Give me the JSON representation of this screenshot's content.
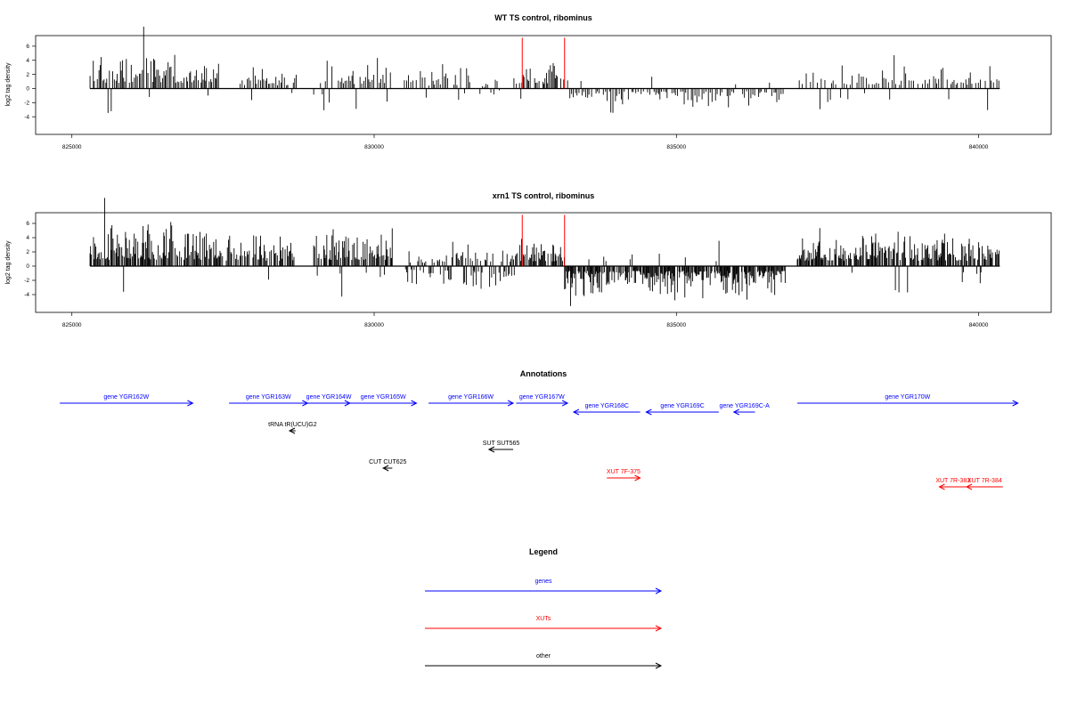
{
  "chart_data": [
    {
      "type": "bar",
      "title": "WT TS control, ribominus",
      "ylabel": "log2 tag density",
      "xlabel": "",
      "xlim": [
        824400,
        841200
      ],
      "ylim": [
        -6.5,
        7.5
      ],
      "xticks": [
        825000,
        830000,
        835000,
        840000
      ],
      "yticks": [
        -4,
        -2,
        0,
        2,
        4,
        6
      ],
      "xtick_labels": [
        "825000",
        "830000",
        "835000",
        "840000"
      ],
      "ytick_labels": [
        "-4",
        "-2",
        "0",
        "2",
        "4",
        "6"
      ],
      "markers": [
        832450,
        833150
      ],
      "marker_height": 7.2,
      "segments": [
        {
          "from": 825300,
          "to": 827450,
          "amp": 3.2,
          "neg": 0.03,
          "step": 22
        },
        {
          "from": 827750,
          "to": 828750,
          "amp": 1.8,
          "neg": 0.05,
          "step": 30
        },
        {
          "from": 829000,
          "to": 830300,
          "amp": 2.5,
          "neg": 0.05,
          "step": 26
        },
        {
          "from": 830500,
          "to": 831600,
          "amp": 1.7,
          "neg": 0.06,
          "step": 32
        },
        {
          "from": 831750,
          "to": 832100,
          "amp": 1.0,
          "neg": 0.6,
          "step": 40
        },
        {
          "from": 832250,
          "to": 833150,
          "amp": 2.6,
          "neg": 0.02,
          "step": 22
        },
        {
          "from": 833200,
          "to": 836800,
          "amp": 1.6,
          "neg": 0.93,
          "step": 30
        },
        {
          "from": 837000,
          "to": 840350,
          "amp": 2.0,
          "neg": 0.1,
          "step": 32
        }
      ]
    },
    {
      "type": "bar",
      "title": "xrn1 TS control, ribominus",
      "ylabel": "log2 tag density",
      "xlabel": "",
      "xlim": [
        824400,
        841200
      ],
      "ylim": [
        -6.5,
        7.5
      ],
      "xticks": [
        825000,
        830000,
        835000,
        840000
      ],
      "yticks": [
        -4,
        -2,
        0,
        2,
        4,
        6
      ],
      "xtick_labels": [
        "825000",
        "830000",
        "835000",
        "840000"
      ],
      "ytick_labels": [
        "-4",
        "-2",
        "0",
        "2",
        "4",
        "6"
      ],
      "markers": [
        832450,
        833150
      ],
      "marker_height": 7.2,
      "segments": [
        {
          "from": 825300,
          "to": 827450,
          "amp": 3.6,
          "neg": 0.02,
          "step": 14
        },
        {
          "from": 827450,
          "to": 828700,
          "amp": 2.8,
          "neg": 0.05,
          "step": 18
        },
        {
          "from": 829000,
          "to": 830300,
          "amp": 3.4,
          "neg": 0.04,
          "step": 14
        },
        {
          "from": 830500,
          "to": 831300,
          "amp": 1.8,
          "neg": 0.45,
          "step": 18
        },
        {
          "from": 831300,
          "to": 832450,
          "amp": 2.4,
          "neg": 0.35,
          "step": 16
        },
        {
          "from": 832450,
          "to": 833150,
          "amp": 2.6,
          "neg": 0.02,
          "step": 14
        },
        {
          "from": 833150,
          "to": 836800,
          "amp": 2.6,
          "neg": 0.95,
          "step": 12
        },
        {
          "from": 837000,
          "to": 840350,
          "amp": 3.0,
          "neg": 0.06,
          "step": 14
        }
      ]
    }
  ],
  "annotations": {
    "title": "Annotations",
    "items": [
      {
        "label": "gene YGR162W",
        "from": 824800,
        "to": 827000,
        "dir": "right",
        "type": "gene",
        "row": 0
      },
      {
        "label": "gene YGR163W",
        "from": 827600,
        "to": 828900,
        "dir": "right",
        "type": "gene",
        "row": 0
      },
      {
        "label": "gene YGR164W",
        "from": 828900,
        "to": 829600,
        "dir": "right",
        "type": "gene",
        "row": 0
      },
      {
        "label": "gene YGR165W",
        "from": 829600,
        "to": 830700,
        "dir": "right",
        "type": "gene",
        "row": 0
      },
      {
        "label": "gene YGR166W",
        "from": 830900,
        "to": 832300,
        "dir": "right",
        "type": "gene",
        "row": 0
      },
      {
        "label": "gene YGR167W",
        "from": 832350,
        "to": 833200,
        "dir": "right",
        "type": "gene",
        "row": 0
      },
      {
        "label": "gene YGR168C",
        "from": 833300,
        "to": 834400,
        "dir": "left",
        "type": "gene",
        "row": 1
      },
      {
        "label": "gene YGR169C",
        "from": 834500,
        "to": 835700,
        "dir": "left",
        "type": "gene",
        "row": 1
      },
      {
        "label": "gene YGR169C-A",
        "from": 835950,
        "to": 836300,
        "dir": "left",
        "type": "gene",
        "row": 1
      },
      {
        "label": "gene YGR170W",
        "from": 837000,
        "to": 840650,
        "dir": "right",
        "type": "gene",
        "row": 0
      },
      {
        "label": "tRNA tR(UCU)G2",
        "from": 828600,
        "to": 828700,
        "dir": "left",
        "type": "other",
        "row": 2
      },
      {
        "label": "SUT SUT565",
        "from": 831900,
        "to": 832300,
        "dir": "left",
        "type": "other",
        "row": 3
      },
      {
        "label": "CUT CUT625",
        "from": 830150,
        "to": 830300,
        "dir": "left",
        "type": "other",
        "row": 4
      },
      {
        "label": "XUT 7F-375",
        "from": 833850,
        "to": 834400,
        "dir": "right",
        "type": "xut",
        "row": 5
      },
      {
        "label": "XUT 7R-383",
        "from": 839350,
        "to": 839800,
        "dir": "left",
        "type": "xut",
        "row": 6
      },
      {
        "label": "XUT 7R-384",
        "from": 839800,
        "to": 840400,
        "dir": "left",
        "type": "xut",
        "row": 6
      }
    ]
  },
  "legend": {
    "title": "Legend",
    "items": [
      {
        "label": "genes",
        "color": "#0000ff"
      },
      {
        "label": "XUTs",
        "color": "#ff0000"
      },
      {
        "label": "other",
        "color": "#000000"
      }
    ]
  },
  "colors": {
    "gene": "#0000ff",
    "xut": "#ff0000",
    "other": "#000000",
    "marker": "#ff0000",
    "signal": "#000000"
  }
}
